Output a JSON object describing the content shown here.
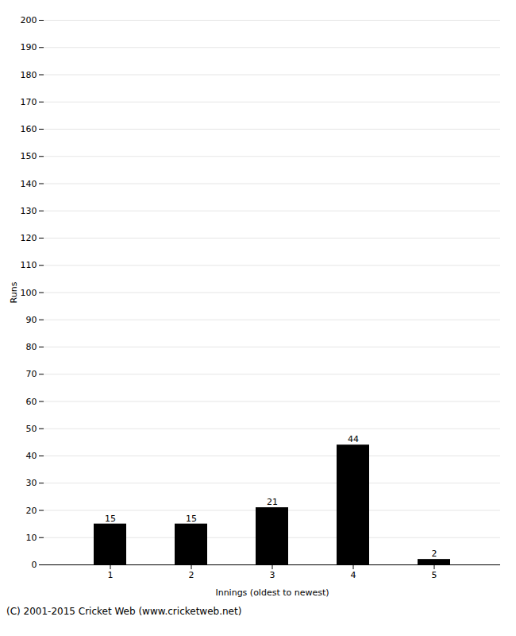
{
  "chart_data": {
    "type": "bar",
    "categories": [
      "1",
      "2",
      "3",
      "4",
      "5"
    ],
    "values": [
      15,
      15,
      21,
      44,
      2
    ],
    "xlabel": "Innings (oldest to newest)",
    "ylabel": "Runs",
    "ylim": [
      0,
      200
    ],
    "yticks": [
      0,
      10,
      20,
      30,
      40,
      50,
      60,
      70,
      80,
      90,
      100,
      110,
      120,
      130,
      140,
      150,
      160,
      170,
      180,
      190,
      200
    ],
    "grid": true,
    "data_labels": true,
    "annotations": [
      "(C) 2001-2015 Cricket Web (www.cricketweb.net)"
    ]
  }
}
